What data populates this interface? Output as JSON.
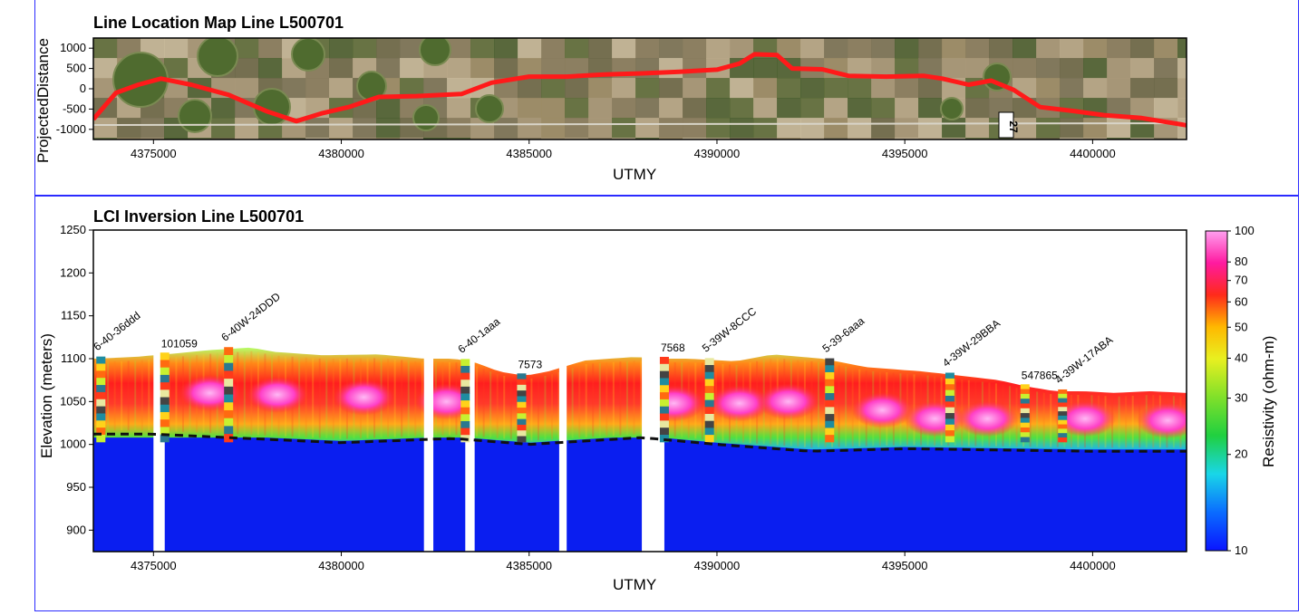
{
  "top": {
    "title": "Line Location Map Line L500701",
    "ylabel": "ProjectedDistance",
    "xlabel": "UTMY",
    "road_label": "27"
  },
  "bottom": {
    "title": "LCI Inversion Line L500701",
    "ylabel": "Elevation (meters)",
    "xlabel": "UTMY",
    "colorbar_label": "Resistivity (ohm-m)"
  },
  "colors": {
    "frame": "#2b2bff",
    "track": "#ff1a1a",
    "deep_fill": "#0a1ef0"
  },
  "chart_data": [
    {
      "type": "line",
      "title": "Line Location Map Line L500701",
      "xlabel": "UTMY",
      "ylabel": "ProjectedDistance",
      "xlim": [
        4373400,
        4402500
      ],
      "ylim": [
        -1250,
        1250
      ],
      "x_ticks": [
        4375000,
        4380000,
        4385000,
        4390000,
        4395000,
        4400000
      ],
      "y_ticks": [
        1000,
        500,
        0,
        -500,
        -1000
      ],
      "series": [
        {
          "x": [
            4373400,
            4374000,
            4374600,
            4375200,
            4376000,
            4377000,
            4378000,
            4378800,
            4379500,
            4380200,
            4381000,
            4382000,
            4383200,
            4384000,
            4385000,
            4386000,
            4387000,
            4388000,
            4389000,
            4390000,
            4390600,
            4391000,
            4391600,
            4392000,
            4392800,
            4393500,
            4394500,
            4395500,
            4396000,
            4396700,
            4397300,
            4397900,
            4398600,
            4399500,
            4400300,
            4401300,
            4402500
          ],
          "y": [
            -750,
            -100,
            100,
            250,
            100,
            -150,
            -550,
            -800,
            -600,
            -450,
            -200,
            -180,
            -130,
            150,
            300,
            300,
            350,
            380,
            420,
            470,
            620,
            850,
            830,
            500,
            480,
            320,
            300,
            320,
            250,
            100,
            200,
            -30,
            -450,
            -550,
            -650,
            -720,
            -900
          ]
        }
      ]
    },
    {
      "type": "heatmap",
      "title": "LCI Inversion Line L500701",
      "xlabel": "UTMY",
      "ylabel": "Elevation (meters)",
      "xlim": [
        4373400,
        4402500
      ],
      "ylim": [
        875,
        1250
      ],
      "x_ticks": [
        4375000,
        4380000,
        4385000,
        4390000,
        4395000,
        4400000
      ],
      "y_ticks": [
        1250,
        1200,
        1150,
        1100,
        1050,
        1000,
        950,
        900
      ],
      "colorbar": {
        "label": "Resistivity (ohm-m)",
        "scale": "log",
        "range": [
          10,
          100
        ],
        "ticks": [
          100,
          80,
          70,
          60,
          50,
          40,
          30,
          20,
          10
        ]
      },
      "surface": {
        "x": [
          4373400,
          4374500,
          4375300,
          4376500,
          4377600,
          4378200,
          4379500,
          4381000,
          4382200,
          4383000,
          4383600,
          4384200,
          4384900,
          4385500,
          4386500,
          4387800,
          4388600,
          4389200,
          4390500,
          4391500,
          4392800,
          4394000,
          4395500,
          4396500,
          4397500,
          4398200,
          4399000,
          4399800,
          4400600,
          4401500,
          4402500
        ],
        "y": [
          1100,
          1102,
          1105,
          1110,
          1113,
          1108,
          1104,
          1105,
          1100,
          1100,
          1095,
          1085,
          1080,
          1085,
          1098,
          1102,
          1100,
          1100,
          1097,
          1105,
          1100,
          1090,
          1085,
          1080,
          1075,
          1068,
          1062,
          1062,
          1060,
          1062,
          1060
        ]
      },
      "doi_line": {
        "x": [
          4373400,
          4375000,
          4377000,
          4380000,
          4383000,
          4385000,
          4388000,
          4390000,
          4392500,
          4395000,
          4400000,
          4402500
        ],
        "y": [
          1012,
          1012,
          1008,
          1002,
          1007,
          1000,
          1008,
          1000,
          992,
          995,
          992,
          992
        ]
      },
      "gaps": [
        [
          4375000,
          4375300
        ],
        [
          4382200,
          4382450
        ],
        [
          4383300,
          4383550
        ],
        [
          4385800,
          4386000
        ],
        [
          4388000,
          4388600
        ]
      ],
      "high_resistivity_zones": [
        {
          "x": 4376500,
          "elev": 1060
        },
        {
          "x": 4378300,
          "elev": 1058
        },
        {
          "x": 4380600,
          "elev": 1055
        },
        {
          "x": 4382800,
          "elev": 1050
        },
        {
          "x": 4388850,
          "elev": 1048
        },
        {
          "x": 4390600,
          "elev": 1048
        },
        {
          "x": 4391900,
          "elev": 1050
        },
        {
          "x": 4394400,
          "elev": 1040
        },
        {
          "x": 4395800,
          "elev": 1030
        },
        {
          "x": 4397200,
          "elev": 1030
        },
        {
          "x": 4399800,
          "elev": 1030
        },
        {
          "x": 4402000,
          "elev": 1028
        }
      ],
      "wells": [
        {
          "label": "6-40-36ddd",
          "x": 4373600,
          "rotated": true
        },
        {
          "label": "101059",
          "x": 4375300,
          "rotated": false
        },
        {
          "label": "6-40W-24DDD",
          "x": 4377000,
          "rotated": true
        },
        {
          "label": "6-40-1aaa",
          "x": 4383300,
          "rotated": true
        },
        {
          "label": "7573",
          "x": 4384800,
          "rotated": false
        },
        {
          "label": "7568",
          "x": 4388600,
          "rotated": false
        },
        {
          "label": "5-39W-8CCC",
          "x": 4389800,
          "rotated": true
        },
        {
          "label": "5-39-6aaa",
          "x": 4393000,
          "rotated": true
        },
        {
          "label": "4-39W-29BBA",
          "x": 4396200,
          "rotated": true
        },
        {
          "label": "547865",
          "x": 4398200,
          "rotated": false
        },
        {
          "label": "4-39W-17ABA",
          "x": 4399200,
          "rotated": true
        }
      ]
    }
  ]
}
